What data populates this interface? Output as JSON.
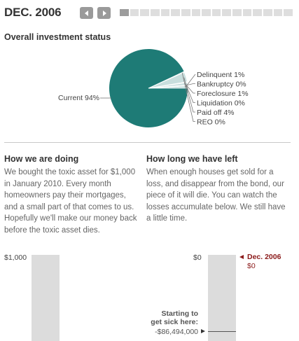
{
  "header": {
    "title": "DEC. 2006"
  },
  "nav": {
    "prev_icon": "chevron-left-icon",
    "next_icon": "chevron-right-icon"
  },
  "timeline": {
    "total_segments": 17,
    "active_index": 0
  },
  "section1": {
    "title": "Overall investment status"
  },
  "chart_data": {
    "type": "pie",
    "title": "Overall investment status",
    "slices": [
      {
        "label": "Current",
        "value": 94,
        "display": "Current 94%"
      },
      {
        "label": "Delinquent",
        "value": 1,
        "display": "Delinquent 1%"
      },
      {
        "label": "Bankruptcy",
        "value": 0,
        "display": "Bankruptcy 0%"
      },
      {
        "label": "Foreclosure",
        "value": 1,
        "display": "Foreclosure 1%"
      },
      {
        "label": "Liquidation",
        "value": 0,
        "display": "Liquidation 0%"
      },
      {
        "label": "Paid off",
        "value": 4,
        "display": "Paid off 4%"
      },
      {
        "label": "REO",
        "value": 0,
        "display": "REO 0%"
      }
    ],
    "colors": {
      "current": "#1e7b76",
      "other": "#c8dedd",
      "outline": "#ffffff"
    }
  },
  "how_doing": {
    "title": "How we are doing",
    "text": "We bought the toxic asset for $1,000 in January 2010. Every month homeowners pay their mortgages, and a small part of that comes to us. Hopefully we'll make our money back before the toxic asset dies."
  },
  "how_long": {
    "title": "How long we have left",
    "text": "When enough houses get sold for a loss, and disappear from the bond, our piece of it will die. You can watch the losses accumulate below.  We still have a little time."
  },
  "left_bar": {
    "label": "$1,000"
  },
  "right_bar": {
    "label": "$0",
    "marker_date": "Dec. 2006",
    "marker_value": "$0",
    "marker_color": "#8b1a1a",
    "note_line1": "Starting to",
    "note_line2": "get sick here:",
    "note_value": "-$86,494,000"
  }
}
